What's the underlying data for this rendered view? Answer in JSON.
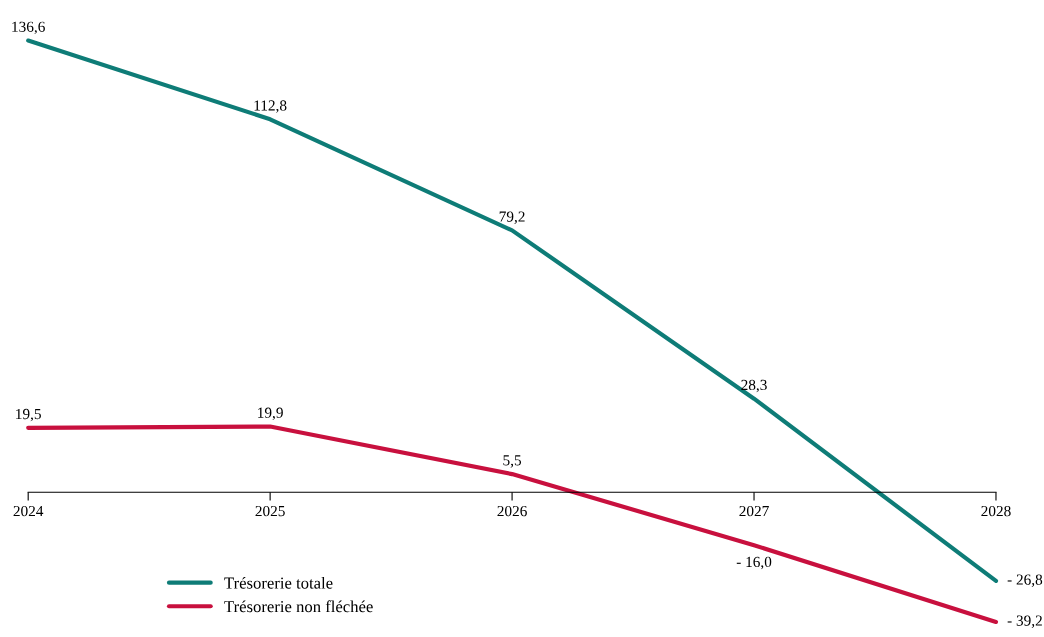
{
  "chart_data": {
    "type": "line",
    "categories": [
      "2024",
      "2025",
      "2026",
      "2027",
      "2028"
    ],
    "series": [
      {
        "name": "Trésorerie totale",
        "color": "#0e7c77",
        "values": [
          136.6,
          112.8,
          79.2,
          28.3,
          -26.8
        ],
        "value_labels": [
          "136,6",
          "112,8",
          "79,2",
          "28,3",
          "- 26,8"
        ]
      },
      {
        "name": "Trésorerie non fléchée",
        "color": "#c8103e",
        "values": [
          19.5,
          19.9,
          5.5,
          -16.0,
          -39.2
        ],
        "value_labels": [
          "19,5",
          "19,9",
          "5,5",
          "- 16,0",
          "- 39,2"
        ]
      }
    ],
    "grid": false,
    "legend": "bottom left",
    "marker": "none",
    "line_style": "solid"
  }
}
